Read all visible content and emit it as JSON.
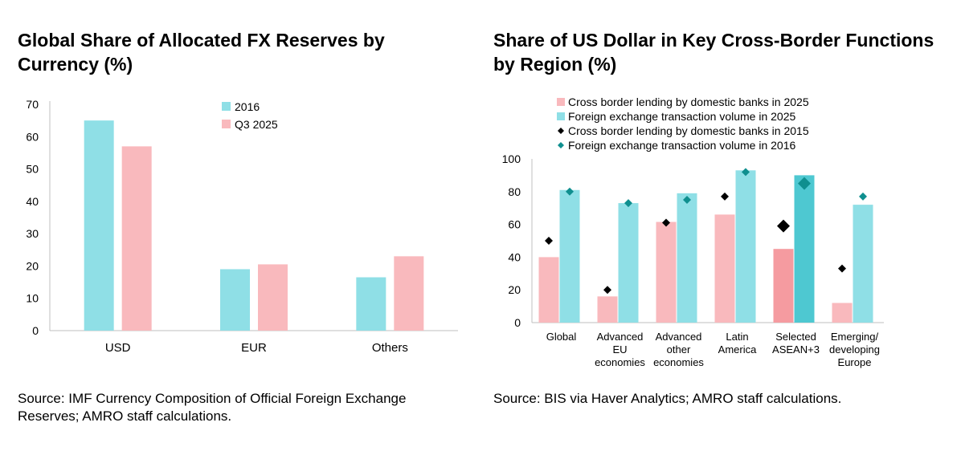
{
  "colors": {
    "light_blue": "#8fdfe6",
    "light_pink": "#f9b9bd",
    "highlight_pink": "#f59ba0",
    "highlight_blue": "#4ec8d1",
    "dark_teal": "#0f8f8f",
    "black": "#000000",
    "axis": "#bfbfbf"
  },
  "chart_data": [
    {
      "type": "bar",
      "title": "Global Share of Allocated FX Reserves by Currency (%)",
      "categories": [
        "USD",
        "EUR",
        "Others"
      ],
      "series": [
        {
          "name": "2016",
          "values": [
            65,
            19,
            16.5
          ]
        },
        {
          "name": "Q3 2025",
          "values": [
            57,
            20.5,
            23
          ]
        }
      ],
      "ylim": [
        0,
        70
      ],
      "yticks": [
        "0",
        "10",
        "20",
        "30",
        "40",
        "50",
        "60",
        "70"
      ],
      "legend_position": "top-right",
      "source": "Source: IMF Currency Composition of Official Foreign Exchange Reserves; AMRO staff calculations."
    },
    {
      "type": "bar",
      "title": "Share of US Dollar in Key Cross-Border Functions by Region (%)",
      "categories": [
        [
          "Global"
        ],
        [
          "Advanced",
          "EU",
          "economies"
        ],
        [
          "Advanced",
          "other",
          "economies"
        ],
        [
          "Latin",
          "America"
        ],
        [
          "Selected",
          "ASEAN+3"
        ],
        [
          "Emerging/",
          "developing",
          "Europe"
        ]
      ],
      "series": [
        {
          "name": "Cross border lending by domestic banks in 2025",
          "kind": "bar",
          "values": [
            40,
            16,
            61.5,
            66,
            45,
            12
          ]
        },
        {
          "name": "Foreign exchange transaction volume in 2025",
          "kind": "bar",
          "values": [
            81,
            73,
            79,
            93,
            90,
            72
          ]
        },
        {
          "name": "Cross border lending by domestic banks in 2015",
          "kind": "marker",
          "values": [
            50,
            20,
            61,
            77,
            59,
            33
          ]
        },
        {
          "name": "Foreign exchange transaction volume in 2016",
          "kind": "marker",
          "values": [
            80,
            73,
            75,
            92,
            85,
            77
          ]
        }
      ],
      "highlight_category_index": 4,
      "ylim": [
        0,
        100
      ],
      "yticks": [
        "0",
        "20",
        "40",
        "60",
        "80",
        "100"
      ],
      "legend_position": "top",
      "source": "Source: BIS via Haver Analytics; AMRO staff calculations."
    }
  ]
}
